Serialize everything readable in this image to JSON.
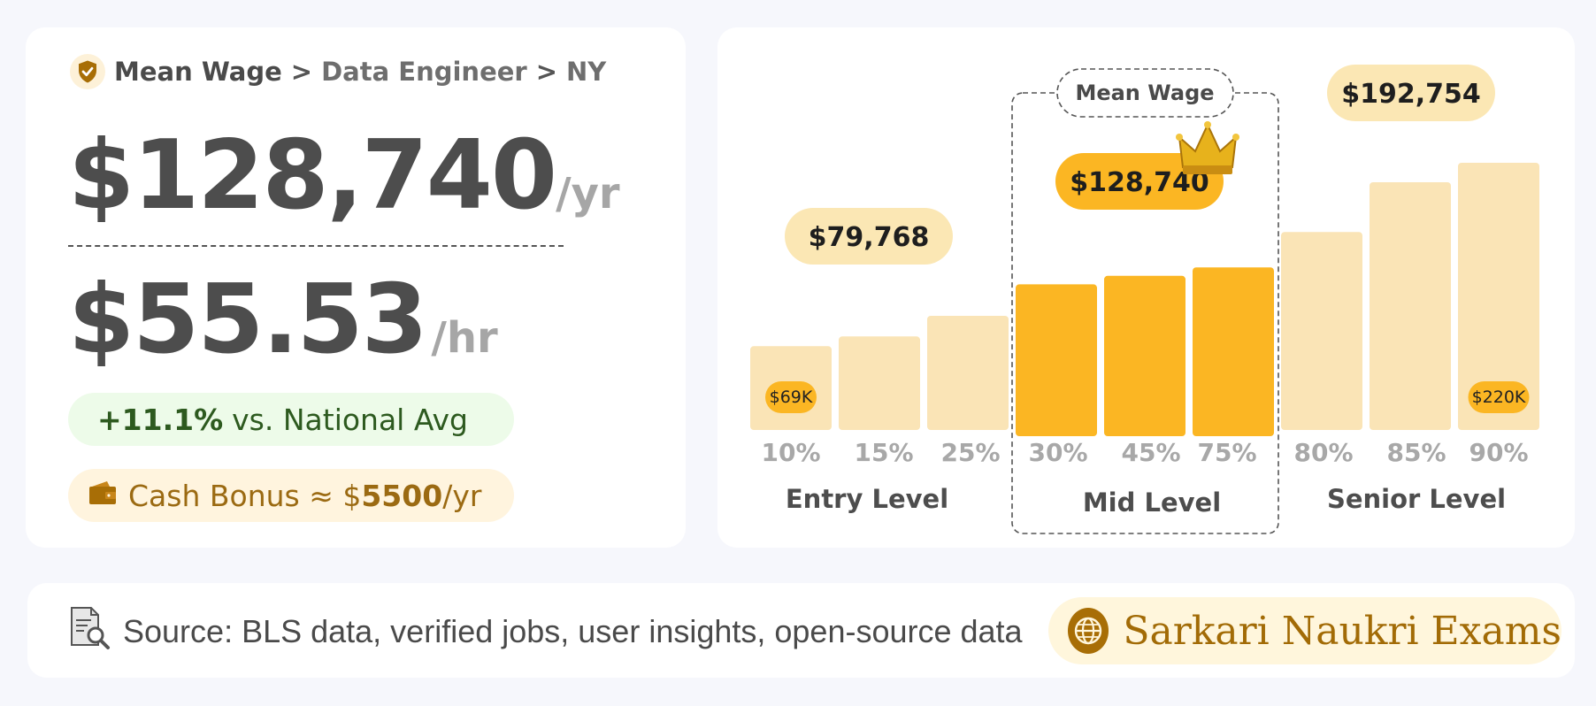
{
  "breadcrumb": {
    "items": [
      "Mean Wage",
      "Data Engineer",
      "NY"
    ],
    "separator": ">"
  },
  "annual": {
    "value": "$128,740",
    "unit": "/yr"
  },
  "hourly": {
    "value": "$55.53",
    "unit": "/hr"
  },
  "national_compare": {
    "pct": "+11.1%",
    "text": "vs. National Avg"
  },
  "bonus": {
    "prefix": "Cash Bonus ≈ $",
    "amount": "5500",
    "unit": "/yr"
  },
  "footer": {
    "source": "Source: BLS data, verified jobs, user insights, open-source data",
    "brand": "Sarkari Naukri Exams"
  },
  "colors": {
    "highlight": "#fbb623",
    "light_bar": "#fae4b6",
    "bubble_light": "#fbe7b4",
    "text_dark": "#4d4d4d",
    "tick_grey": "#a8a8a8"
  },
  "chart_data": {
    "type": "bar",
    "title": "",
    "xlabel": "",
    "ylabel": "",
    "categories": [
      "10%",
      "15%",
      "25%",
      "30%",
      "45%",
      "75%",
      "80%",
      "85%",
      "90%"
    ],
    "values": [
      69000,
      77000,
      94000,
      125000,
      132000,
      139000,
      163000,
      204000,
      220000
    ],
    "highlight": [
      "30%",
      "45%",
      "75%"
    ],
    "ylim": [
      0,
      220000
    ],
    "groups": [
      {
        "label": "Entry Level",
        "categories": [
          "10%",
          "15%",
          "25%"
        ],
        "value_label": "$79,768"
      },
      {
        "label": "Mid Level",
        "categories": [
          "30%",
          "45%",
          "75%"
        ],
        "value_label": "$128,740",
        "tag": "Mean Wage"
      },
      {
        "label": "Senior Level",
        "categories": [
          "80%",
          "85%",
          "90%"
        ],
        "value_label": "$192,754"
      }
    ],
    "bar_labels": [
      {
        "category": "10%",
        "text": "$69K"
      },
      {
        "category": "90%",
        "text": "$220K"
      }
    ],
    "grid": false,
    "legend": "none"
  }
}
